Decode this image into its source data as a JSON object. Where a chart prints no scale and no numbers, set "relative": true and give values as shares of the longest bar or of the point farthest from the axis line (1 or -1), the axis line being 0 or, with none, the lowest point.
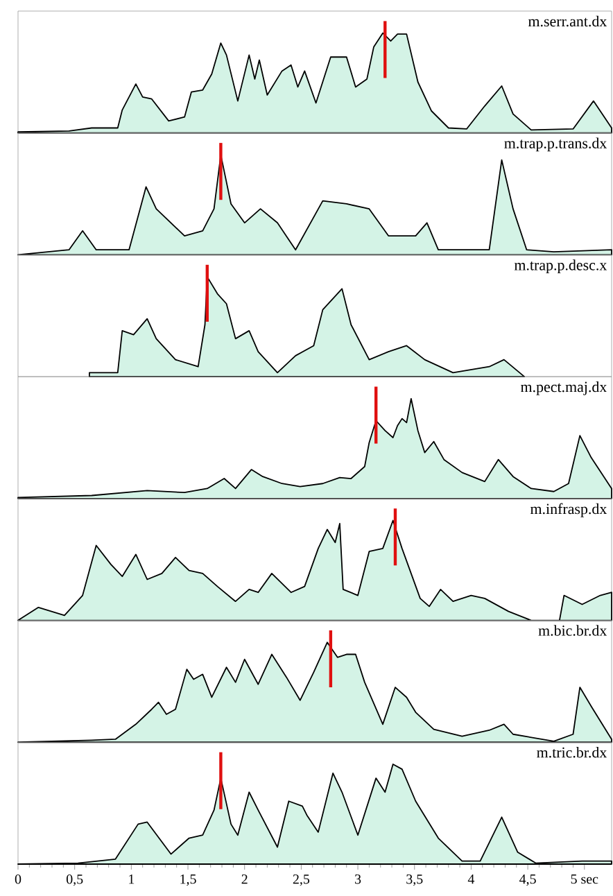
{
  "chart_data": [
    {
      "type": "area",
      "title": "m.serr.ant.dx",
      "relative": true,
      "color": "#d4f3e6",
      "xlim": [
        0,
        5.24
      ],
      "tick_labels": false,
      "ref_lines": [
        {
          "axis": "x",
          "value": 3.24,
          "color": "#e01010"
        }
      ],
      "x": [
        0,
        0.45,
        0.65,
        0.88,
        0.92,
        1.04,
        1.1,
        1.18,
        1.33,
        1.47,
        1.53,
        1.63,
        1.71,
        1.79,
        1.84,
        1.94,
        2.04,
        2.09,
        2.13,
        2.2,
        2.33,
        2.41,
        2.47,
        2.53,
        2.63,
        2.76,
        2.9,
        2.98,
        3.08,
        3.14,
        3.22,
        3.29,
        3.35,
        3.43,
        3.53,
        3.65,
        3.8,
        3.96,
        4.12,
        4.27,
        4.37,
        4.53,
        4.9,
        5.08,
        5.24
      ],
      "values": [
        0.01,
        0.02,
        0.05,
        0.05,
        0.23,
        0.49,
        0.36,
        0.34,
        0.12,
        0.16,
        0.41,
        0.43,
        0.59,
        0.9,
        0.78,
        0.32,
        0.78,
        0.54,
        0.73,
        0.38,
        0.62,
        0.68,
        0.46,
        0.62,
        0.3,
        0.76,
        0.76,
        0.46,
        0.54,
        0.86,
        1.0,
        0.92,
        0.99,
        0.99,
        0.51,
        0.22,
        0.05,
        0.04,
        0.27,
        0.47,
        0.19,
        0.03,
        0.04,
        0.32,
        0.05
      ]
    },
    {
      "type": "area",
      "title": "m.trap.p.trans.dx",
      "relative": true,
      "color": "#d4f3e6",
      "xlim": [
        0,
        5.24
      ],
      "tick_labels": false,
      "ref_lines": [
        {
          "axis": "x",
          "value": 1.79,
          "color": "#e01010"
        }
      ],
      "x": [
        0,
        0.45,
        0.57,
        0.69,
        0.98,
        1.13,
        1.22,
        1.47,
        1.63,
        1.73,
        1.79,
        1.88,
        2.0,
        2.14,
        2.29,
        2.45,
        2.69,
        2.9,
        3.1,
        3.27,
        3.51,
        3.61,
        3.71,
        4.16,
        4.27,
        4.37,
        4.49,
        4.73,
        5.24
      ],
      "values": [
        0,
        0.05,
        0.24,
        0.05,
        0.05,
        0.68,
        0.46,
        0.19,
        0.24,
        0.46,
        1.0,
        0.51,
        0.32,
        0.46,
        0.32,
        0.05,
        0.54,
        0.51,
        0.46,
        0.19,
        0.19,
        0.32,
        0.05,
        0.05,
        0.95,
        0.46,
        0.05,
        0.03,
        0.05
      ]
    },
    {
      "type": "area",
      "title": "m.trap.p.desc.x",
      "relative": true,
      "color": "#d4f3e6",
      "xlim": [
        0,
        5.24
      ],
      "tick_labels": false,
      "ref_lines": [
        {
          "axis": "x",
          "value": 1.67,
          "color": "#e01010"
        }
      ],
      "x": [
        0.63,
        0.88,
        0.92,
        1.02,
        1.14,
        1.22,
        1.39,
        1.59,
        1.65,
        1.67,
        1.76,
        1.84,
        1.92,
        2.04,
        2.12,
        2.29,
        2.45,
        2.61,
        2.69,
        2.86,
        2.94,
        3.1,
        3.27,
        3.43,
        3.59,
        3.84,
        4.16,
        4.29,
        4.47
      ],
      "values": [
        0.04,
        0.04,
        0.46,
        0.42,
        0.58,
        0.38,
        0.17,
        0.1,
        0.52,
        1.0,
        0.83,
        0.73,
        0.38,
        0.46,
        0.25,
        0.04,
        0.21,
        0.31,
        0.67,
        0.88,
        0.52,
        0.17,
        0.25,
        0.31,
        0.17,
        0.04,
        0.1,
        0.17,
        0
      ]
    },
    {
      "type": "area",
      "title": "m.pect.maj.dx",
      "relative": true,
      "color": "#d4f3e6",
      "xlim": [
        0,
        5.24
      ],
      "tick_labels": false,
      "ref_lines": [
        {
          "axis": "x",
          "value": 3.16,
          "color": "#e01010"
        }
      ],
      "x": [
        0,
        0.65,
        1.14,
        1.47,
        1.67,
        1.82,
        1.92,
        2.06,
        2.16,
        2.33,
        2.49,
        2.69,
        2.84,
        2.94,
        3.06,
        3.1,
        3.16,
        3.24,
        3.31,
        3.35,
        3.39,
        3.43,
        3.47,
        3.53,
        3.59,
        3.67,
        3.76,
        3.92,
        4.12,
        4.24,
        4.37,
        4.53,
        4.73,
        4.86,
        4.96,
        5.06,
        5.24
      ],
      "values": [
        0.01,
        0.03,
        0.08,
        0.06,
        0.1,
        0.2,
        0.1,
        0.29,
        0.22,
        0.15,
        0.12,
        0.15,
        0.21,
        0.2,
        0.32,
        0.56,
        0.78,
        0.68,
        0.61,
        0.73,
        0.8,
        0.76,
        1.0,
        0.68,
        0.46,
        0.57,
        0.39,
        0.26,
        0.17,
        0.39,
        0.22,
        0.1,
        0.07,
        0.15,
        0.63,
        0.41,
        0.1
      ]
    },
    {
      "type": "area",
      "title": "m.infrasp.dx",
      "relative": true,
      "color": "#d4f3e6",
      "xlim": [
        0,
        5.24
      ],
      "tick_labels": false,
      "ref_lines": [
        {
          "axis": "x",
          "value": 3.33,
          "color": "#e01010"
        }
      ],
      "x": [
        0,
        0.18,
        0.41,
        0.57,
        0.69,
        0.82,
        0.92,
        1.04,
        1.14,
        1.27,
        1.39,
        1.51,
        1.63,
        1.76,
        1.92,
        2.04,
        2.12,
        2.24,
        2.41,
        2.53,
        2.65,
        2.73,
        2.8,
        2.84,
        2.87,
        3.0,
        3.1,
        3.22,
        3.31,
        3.39,
        3.55,
        3.63,
        3.73,
        3.84,
        4.0,
        4.12,
        4.33,
        4.53,
        4.78,
        4.82,
        4.98,
        5.14,
        5.24
      ],
      "values": [
        0,
        0.13,
        0.05,
        0.25,
        0.75,
        0.56,
        0.44,
        0.66,
        0.41,
        0.47,
        0.63,
        0.5,
        0.47,
        0.34,
        0.19,
        0.31,
        0.28,
        0.47,
        0.28,
        0.34,
        0.72,
        0.91,
        0.78,
        0.97,
        0.31,
        0.25,
        0.69,
        0.72,
        1.0,
        0.72,
        0.22,
        0.14,
        0.31,
        0.19,
        0.25,
        0.22,
        0.09,
        0,
        0,
        0.25,
        0.16,
        0.25,
        0.28
      ]
    },
    {
      "type": "area",
      "title": "m.bic.br.dx",
      "relative": true,
      "color": "#d4f3e6",
      "xlim": [
        0,
        5.24
      ],
      "tick_labels": false,
      "ref_lines": [
        {
          "axis": "x",
          "value": 2.76,
          "color": "#e01010"
        }
      ],
      "x": [
        0,
        0.65,
        0.86,
        1.04,
        1.18,
        1.24,
        1.31,
        1.39,
        1.49,
        1.55,
        1.63,
        1.71,
        1.84,
        1.92,
        2.0,
        2.12,
        2.24,
        2.37,
        2.49,
        2.61,
        2.73,
        2.82,
        2.9,
        2.98,
        3.06,
        3.22,
        3.33,
        3.43,
        3.51,
        3.67,
        3.92,
        4.16,
        4.29,
        4.37,
        4.73,
        4.9,
        4.96,
        5.06,
        5.24
      ],
      "values": [
        0,
        0.02,
        0.03,
        0.18,
        0.33,
        0.4,
        0.28,
        0.33,
        0.73,
        0.63,
        0.68,
        0.45,
        0.75,
        0.6,
        0.83,
        0.58,
        0.88,
        0.65,
        0.42,
        0.7,
        1.0,
        0.85,
        0.88,
        0.88,
        0.6,
        0.18,
        0.55,
        0.45,
        0.3,
        0.13,
        0.06,
        0.12,
        0.18,
        0.08,
        0.01,
        0.08,
        0.55,
        0.36,
        0.03
      ]
    },
    {
      "type": "area",
      "title": "m.tric.br.dx",
      "relative": true,
      "color": "#d4f3e6",
      "xlim": [
        0,
        5.24
      ],
      "tick_labels": "x",
      "ref_lines": [
        {
          "axis": "x",
          "value": 1.79,
          "color": "#e01010"
        }
      ],
      "xticks": [
        0,
        {
          "value": 0.5,
          "label": "0,5"
        },
        1,
        {
          "value": 1.5,
          "label": "1,5"
        },
        2,
        {
          "value": 2.5,
          "label": "2,5"
        },
        3,
        {
          "value": 3.5,
          "label": "3,5"
        },
        4,
        {
          "value": 4.5,
          "label": "4,5"
        },
        {
          "value": 5,
          "label": "5 sec"
        }
      ],
      "x": [
        0,
        0.53,
        0.86,
        1.06,
        1.14,
        1.35,
        1.51,
        1.63,
        1.73,
        1.79,
        1.88,
        1.94,
        2.04,
        2.12,
        2.29,
        2.39,
        2.51,
        2.55,
        2.65,
        2.78,
        2.86,
        3.0,
        3.16,
        3.24,
        3.31,
        3.39,
        3.51,
        3.71,
        3.92,
        4.08,
        4.27,
        4.41,
        4.57,
        4.98,
        5.24
      ],
      "values": [
        0,
        0.01,
        0.05,
        0.4,
        0.42,
        0.1,
        0.26,
        0.29,
        0.54,
        0.86,
        0.4,
        0.29,
        0.72,
        0.54,
        0.17,
        0.63,
        0.58,
        0.49,
        0.32,
        0.91,
        0.72,
        0.29,
        0.86,
        0.72,
        1.0,
        0.95,
        0.63,
        0.26,
        0.03,
        0.03,
        0.47,
        0.12,
        0.01,
        0.03,
        0.03
      ]
    }
  ]
}
